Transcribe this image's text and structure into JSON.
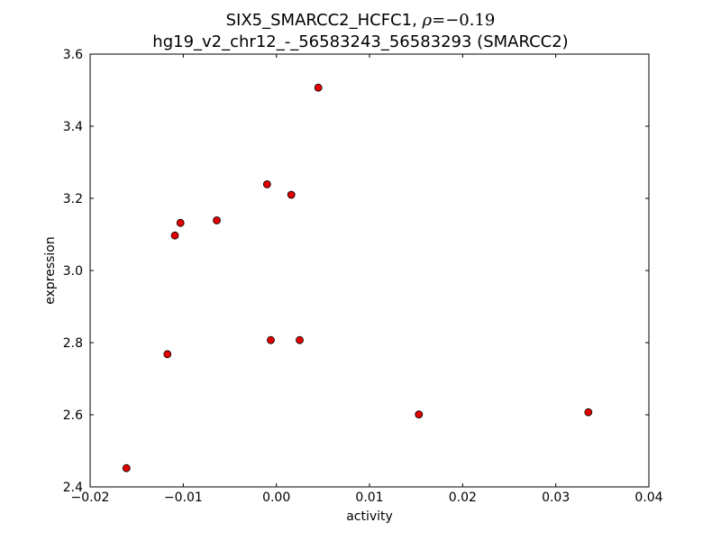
{
  "chart_data": {
    "type": "scatter",
    "title": "SIX5_SMARCC2_HCFC1, ρ = −0.19",
    "title_line1_text": "SIX5_SMARCC2_HCFC1, ",
    "title_rho_symbol": "ρ",
    "title_rho_value": "=−0.19",
    "subtitle": "hg19_v2_chr12_-_56583243_56583293 (SMARCC2)",
    "xlabel": "activity",
    "ylabel": "expression",
    "xlim": [
      -0.02,
      0.04
    ],
    "ylim": [
      2.4,
      3.6
    ],
    "xticks": [
      -0.02,
      -0.01,
      0.0,
      0.01,
      0.02,
      0.03,
      0.04
    ],
    "xtick_labels": [
      "−0.02",
      "−0.01",
      "0.00",
      "0.01",
      "0.02",
      "0.03",
      "0.04"
    ],
    "yticks": [
      2.4,
      2.6,
      2.8,
      3.0,
      3.2,
      3.4,
      3.6
    ],
    "ytick_labels": [
      "2.4",
      "2.6",
      "2.8",
      "3.0",
      "3.2",
      "3.4",
      "3.6"
    ],
    "grid": false,
    "marker_color": "#e00000",
    "points": [
      {
        "x": -0.0161,
        "y": 2.452
      },
      {
        "x": -0.0117,
        "y": 2.768
      },
      {
        "x": -0.0109,
        "y": 3.097
      },
      {
        "x": -0.0103,
        "y": 3.132
      },
      {
        "x": -0.0064,
        "y": 3.139
      },
      {
        "x": -0.001,
        "y": 3.239
      },
      {
        "x": -0.0006,
        "y": 2.807
      },
      {
        "x": 0.0016,
        "y": 3.21
      },
      {
        "x": 0.0025,
        "y": 2.807
      },
      {
        "x": 0.0045,
        "y": 3.507
      },
      {
        "x": 0.0153,
        "y": 2.601
      },
      {
        "x": 0.0335,
        "y": 2.607
      }
    ]
  }
}
